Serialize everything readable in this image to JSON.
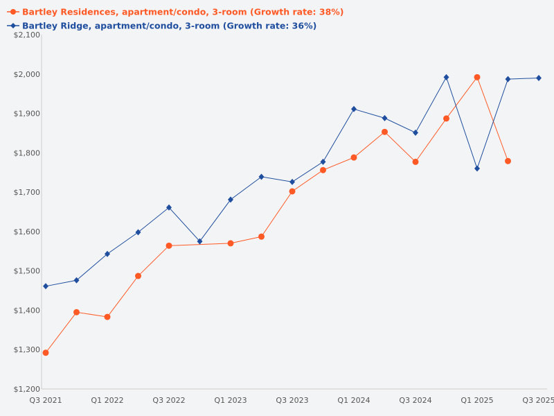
{
  "chart_data": {
    "type": "line",
    "title": "",
    "xlabel": "",
    "ylabel": "",
    "ylim": [
      1200,
      2100
    ],
    "y_ticks": [
      "$1,200",
      "$1,300",
      "$1,400",
      "$1,500",
      "$1,600",
      "$1,700",
      "$1,800",
      "$1,900",
      "$2,000",
      "$2,100"
    ],
    "y_tick_values": [
      1200,
      1300,
      1400,
      1500,
      1600,
      1700,
      1800,
      1900,
      2000,
      2100
    ],
    "x": [
      "Q3 2021",
      "Q4 2021",
      "Q1 2022",
      "Q2 2022",
      "Q3 2022",
      "Q4 2022",
      "Q1 2023",
      "Q2 2023",
      "Q3 2023",
      "Q4 2023",
      "Q1 2024",
      "Q2 2024",
      "Q3 2024",
      "Q4 2024",
      "Q1 2025",
      "Q2 2025",
      "Q3 2025"
    ],
    "x_tick_labels": [
      "Q3 2021",
      "Q1 2022",
      "Q3 2022",
      "Q1 2023",
      "Q3 2023",
      "Q1 2024",
      "Q3 2024",
      "Q1 2025",
      "Q3 2025"
    ],
    "grid": false,
    "legend_placement": "top-left",
    "series": [
      {
        "name": "Bartley Residences, apartment/condo, 3-room (Growth rate: 38%)",
        "color": "#ff5a26",
        "marker": "circle",
        "values": [
          1292,
          1395,
          1383,
          1487,
          1564,
          null,
          1570,
          1587,
          1702,
          1756,
          1788,
          1853,
          1777,
          1887,
          1992,
          1779,
          null
        ]
      },
      {
        "name": "Bartley Ridge, apartment/condo, 3-room (Growth rate: 36%)",
        "color": "#1f4e9e",
        "marker": "diamond",
        "values": [
          1461,
          1476,
          1543,
          1598,
          1661,
          1575,
          1681,
          1739,
          1726,
          1777,
          1911,
          1888,
          1851,
          1992,
          1760,
          1987,
          1990
        ]
      }
    ]
  }
}
